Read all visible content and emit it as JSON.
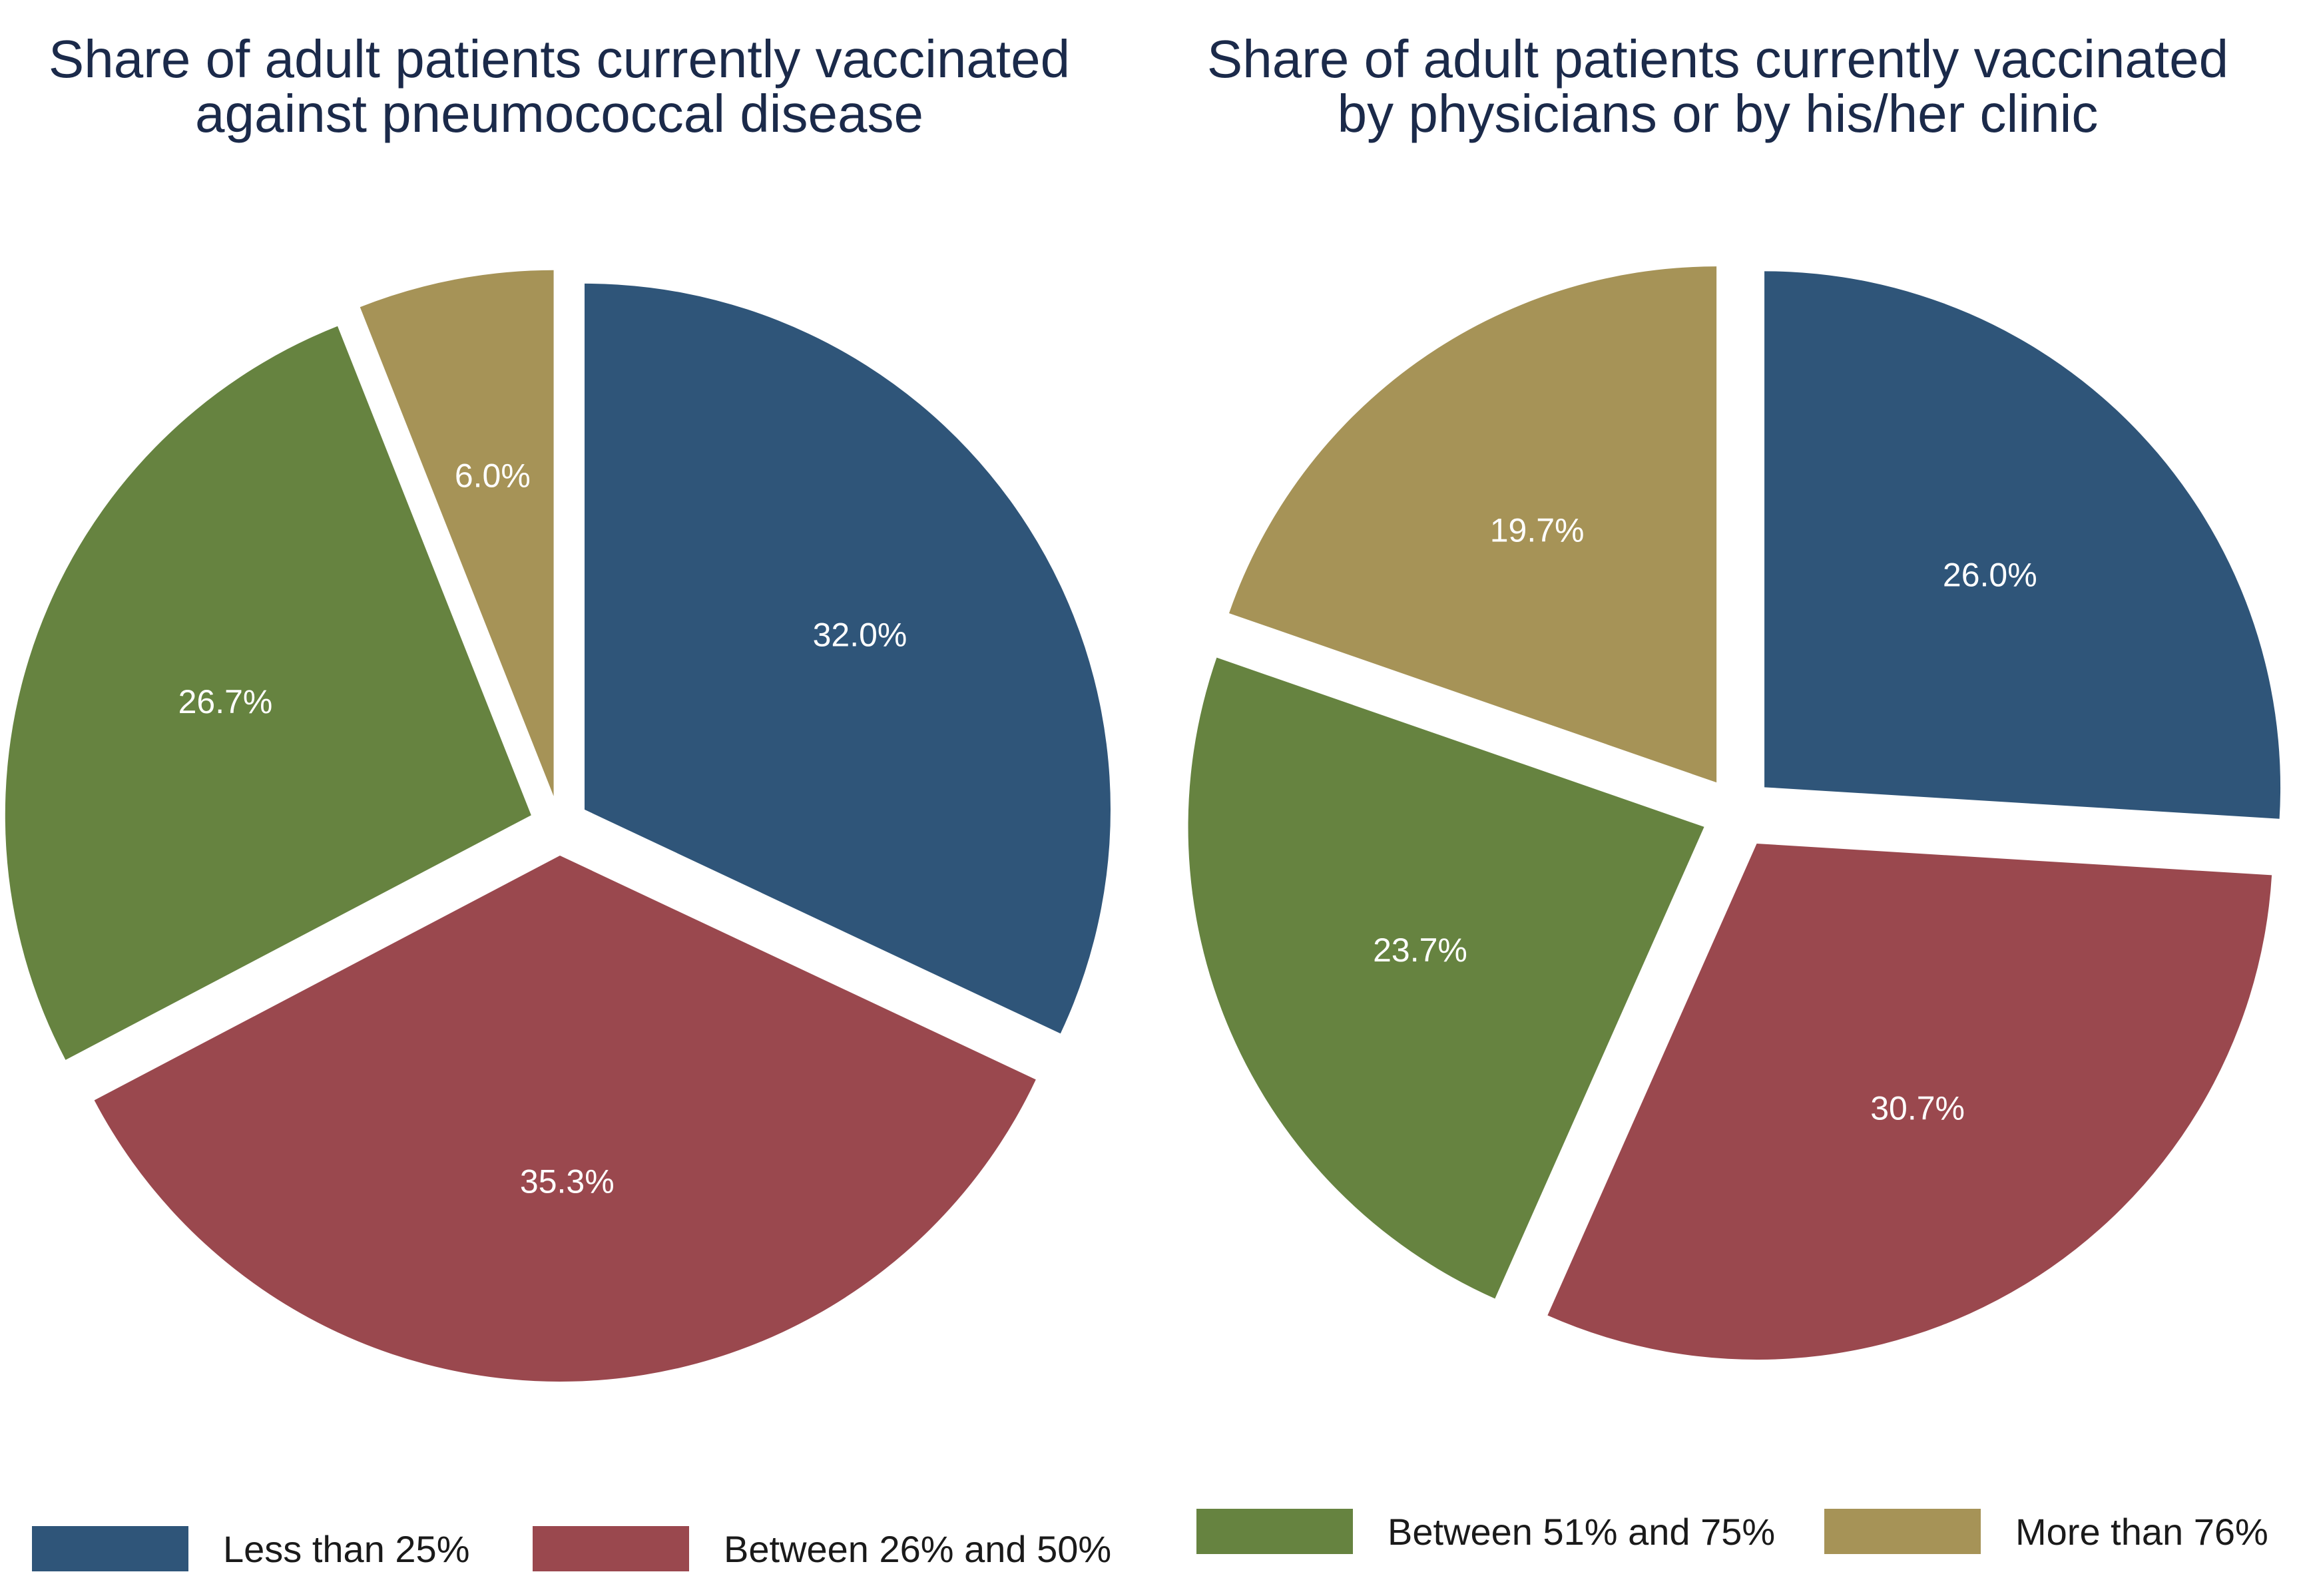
{
  "colors": {
    "less_than_25": "#2f5579",
    "between_26_50": "#9a484e",
    "between_51_75": "#668340",
    "more_than_76": "#a69357"
  },
  "chart_data": [
    {
      "type": "pie",
      "title_line1": "Share of adult patients currently vaccinated",
      "title_line2": "against pneumococcal disease",
      "slices": [
        {
          "label": "Less than 25%",
          "value": 32.0,
          "display": "32.0%"
        },
        {
          "label": "Between 26% and 50%",
          "value": 35.3,
          "display": "35.3%"
        },
        {
          "label": "Between 51% and 75%",
          "value": 26.7,
          "display": "26.7%"
        },
        {
          "label": "More than 76%",
          "value": 6.0,
          "display": "6.0%"
        }
      ]
    },
    {
      "type": "pie",
      "title_line1": "Share of adult patients currently vaccinated",
      "title_line2": "by physicians or by his/her clinic",
      "slices": [
        {
          "label": "Less than 25%",
          "value": 26.0,
          "display": "26.0%"
        },
        {
          "label": "Between 26% and 50%",
          "value": 30.7,
          "display": "30.7%"
        },
        {
          "label": "Between 51% and 75%",
          "value": 23.7,
          "display": "23.7%"
        },
        {
          "label": "More than 76%",
          "value": 19.7,
          "display": "19.7%"
        }
      ]
    }
  ],
  "legend": {
    "position": "bottom",
    "items": [
      {
        "label": "Less than 25%"
      },
      {
        "label": "Between 26% and 50%"
      },
      {
        "label": "Between 51% and 75%"
      },
      {
        "label": "More than 76%"
      }
    ]
  }
}
